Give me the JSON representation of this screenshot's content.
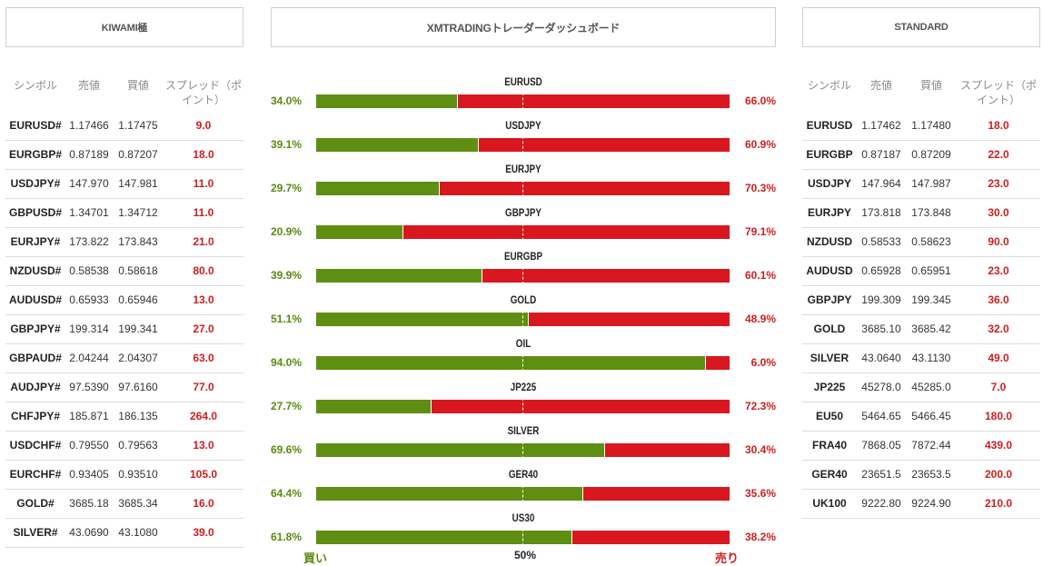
{
  "left": {
    "title": "KIWAMI極",
    "headers": [
      "シンボル",
      "売値",
      "買値",
      "スプレッド（ポイント）"
    ],
    "rows": [
      [
        "EURUSD#",
        "1.17466",
        "1.17475",
        "9.0"
      ],
      [
        "EURGBP#",
        "0.87189",
        "0.87207",
        "18.0"
      ],
      [
        "USDJPY#",
        "147.970",
        "147.981",
        "11.0"
      ],
      [
        "GBPUSD#",
        "1.34701",
        "1.34712",
        "11.0"
      ],
      [
        "EURJPY#",
        "173.822",
        "173.843",
        "21.0"
      ],
      [
        "NZDUSD#",
        "0.58538",
        "0.58618",
        "80.0"
      ],
      [
        "AUDUSD#",
        "0.65933",
        "0.65946",
        "13.0"
      ],
      [
        "GBPJPY#",
        "199.314",
        "199.341",
        "27.0"
      ],
      [
        "GBPAUD#",
        "2.04244",
        "2.04307",
        "63.0"
      ],
      [
        "AUDJPY#",
        "97.5390",
        "97.6160",
        "77.0"
      ],
      [
        "CHFJPY#",
        "185.871",
        "186.135",
        "264.0"
      ],
      [
        "USDCHF#",
        "0.79550",
        "0.79563",
        "13.0"
      ],
      [
        "EURCHF#",
        "0.93405",
        "0.93510",
        "105.0"
      ],
      [
        "GOLD#",
        "3685.18",
        "3685.34",
        "16.0"
      ],
      [
        "SILVER#",
        "43.0690",
        "43.1080",
        "39.0"
      ]
    ]
  },
  "center": {
    "title": "XMTRADINGトレーダーダッシュボード",
    "bars": [
      {
        "symbol": "EURUSD",
        "buy_label": "34.0%",
        "sell_label": "66.0%",
        "buy": 34.0
      },
      {
        "symbol": "USDJPY",
        "buy_label": "39.1%",
        "sell_label": "60.9%",
        "buy": 39.1
      },
      {
        "symbol": "EURJPY",
        "buy_label": "29.7%",
        "sell_label": "70.3%",
        "buy": 29.7
      },
      {
        "symbol": "GBPJPY",
        "buy_label": "20.9%",
        "sell_label": "79.1%",
        "buy": 20.9
      },
      {
        "symbol": "EURGBP",
        "buy_label": "39.9%",
        "sell_label": "60.1%",
        "buy": 39.9
      },
      {
        "symbol": "GOLD",
        "buy_label": "51.1%",
        "sell_label": "48.9%",
        "buy": 51.1
      },
      {
        "symbol": "OIL",
        "buy_label": "94.0%",
        "sell_label": "6.0%",
        "buy": 94.0
      },
      {
        "symbol": "JP225",
        "buy_label": "27.7%",
        "sell_label": "72.3%",
        "buy": 27.7
      },
      {
        "symbol": "SILVER",
        "buy_label": "69.6%",
        "sell_label": "30.4%",
        "buy": 69.6
      },
      {
        "symbol": "GER40",
        "buy_label": "64.4%",
        "sell_label": "35.6%",
        "buy": 64.4
      },
      {
        "symbol": "US30",
        "buy_label": "61.8%",
        "sell_label": "38.2%",
        "buy": 61.8
      }
    ],
    "footer": {
      "buy": "買い",
      "mid": "50%",
      "sell": "売り"
    },
    "colors": {
      "buy": "#5f8f12",
      "sell": "#d8171f"
    }
  },
  "right": {
    "title": "STANDARD",
    "headers": [
      "シンボル",
      "売値",
      "買値",
      "スプレッド（ポイント）"
    ],
    "rows": [
      [
        "EURUSD",
        "1.17462",
        "1.17480",
        "18.0"
      ],
      [
        "EURGBP",
        "0.87187",
        "0.87209",
        "22.0"
      ],
      [
        "USDJPY",
        "147.964",
        "147.987",
        "23.0"
      ],
      [
        "EURJPY",
        "173.818",
        "173.848",
        "30.0"
      ],
      [
        "NZDUSD",
        "0.58533",
        "0.58623",
        "90.0"
      ],
      [
        "AUDUSD",
        "0.65928",
        "0.65951",
        "23.0"
      ],
      [
        "GBPJPY",
        "199.309",
        "199.345",
        "36.0"
      ],
      [
        "GOLD",
        "3685.10",
        "3685.42",
        "32.0"
      ],
      [
        "SILVER",
        "43.0640",
        "43.1130",
        "49.0"
      ],
      [
        "JP225",
        "45278.0",
        "45285.0",
        "7.0"
      ],
      [
        "EU50",
        "5464.65",
        "5466.45",
        "180.0"
      ],
      [
        "FRA40",
        "7868.05",
        "7872.44",
        "439.0"
      ],
      [
        "GER40",
        "23651.5",
        "23653.5",
        "200.0"
      ],
      [
        "UK100",
        "9222.80",
        "9224.90",
        "210.0"
      ]
    ]
  }
}
